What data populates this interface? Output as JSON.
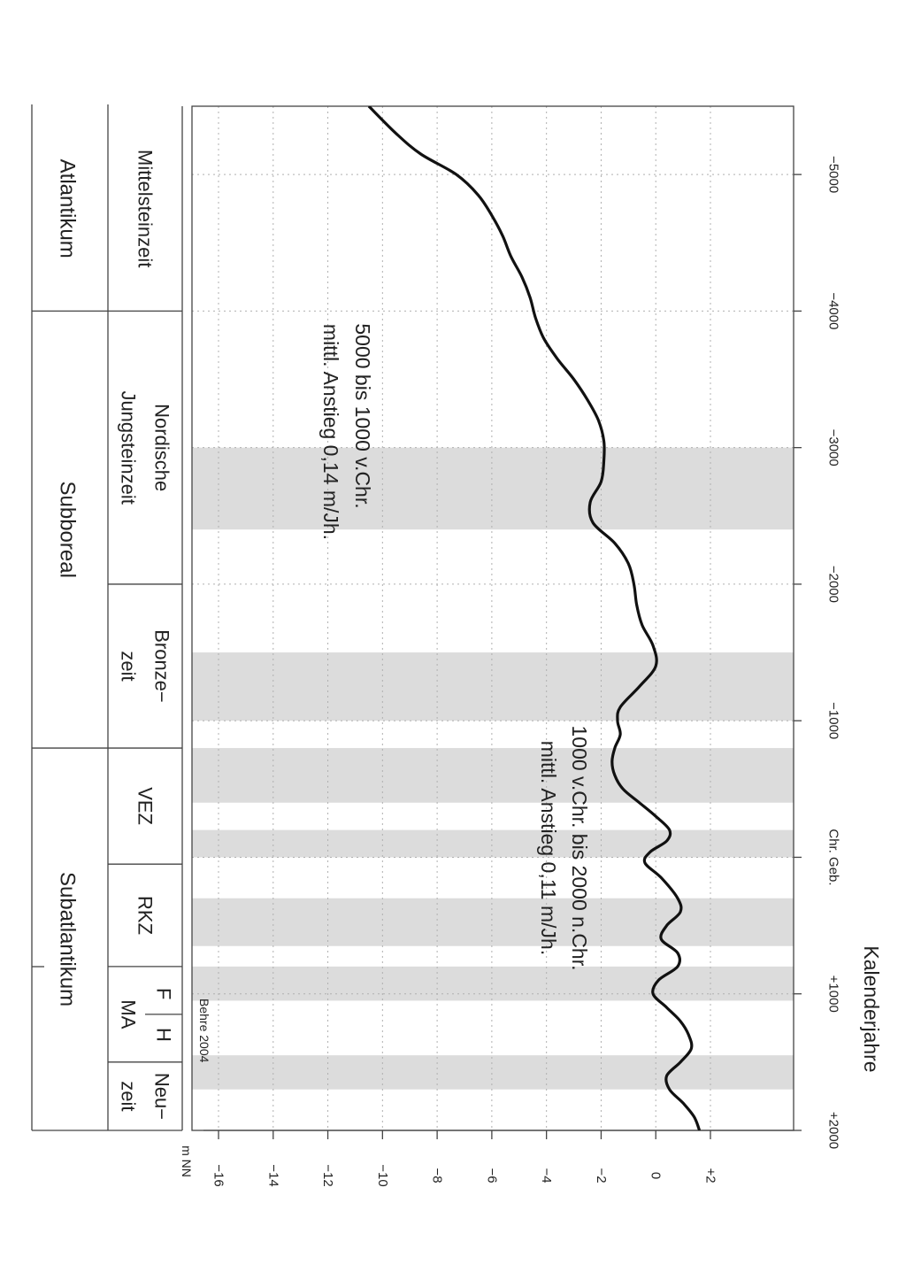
{
  "chart_data": {
    "type": "line",
    "title": "Kalenderjahre",
    "xlabel": "Kalenderjahre",
    "ylabel": "m NN",
    "x_ticks": [
      {
        "value": -5000,
        "label": "−5000"
      },
      {
        "value": -4000,
        "label": "−4000"
      },
      {
        "value": -3000,
        "label": "−3000"
      },
      {
        "value": -2000,
        "label": "−2000"
      },
      {
        "value": -1000,
        "label": "−1000"
      },
      {
        "value": 0,
        "label": "Chr. Geb."
      },
      {
        "value": 1000,
        "label": "+1000"
      },
      {
        "value": 2000,
        "label": "+2000"
      }
    ],
    "y_ticks": [
      {
        "value": 2,
        "label": "+2"
      },
      {
        "value": 0,
        "label": "0"
      },
      {
        "value": -2,
        "label": "−2"
      },
      {
        "value": -4,
        "label": "−4"
      },
      {
        "value": -6,
        "label": "−6"
      },
      {
        "value": -8,
        "label": "−8"
      },
      {
        "value": -10,
        "label": "−10"
      },
      {
        "value": -12,
        "label": "−12"
      },
      {
        "value": -14,
        "label": "−14"
      },
      {
        "value": -16,
        "label": "−16"
      }
    ],
    "xlim": [
      -5500,
      2000
    ],
    "ylim": [
      -17,
      3
    ],
    "grid": true,
    "series": [
      {
        "x": [
          -5500,
          -5300,
          -5150,
          -5000,
          -4850,
          -4700,
          -4550,
          -4400,
          -4250,
          -4100,
          -3950,
          -3800,
          -3650,
          -3500,
          -3350,
          -3200,
          -3050,
          -2900,
          -2750,
          -2600,
          -2450,
          -2300,
          -2150,
          -2000,
          -1850,
          -1700,
          -1550,
          -1400,
          -1250,
          -1100,
          -1000,
          -900,
          -800,
          -700,
          -600,
          -500,
          -400,
          -300,
          -200,
          -120,
          -40,
          40,
          150,
          300,
          400,
          500,
          600,
          700,
          800,
          900,
          1000,
          1100,
          1200,
          1300,
          1400,
          1500,
          1600,
          1700,
          1800,
          1900,
          2000
        ],
        "y": [
          -10.5,
          -9.5,
          -8.6,
          -7.3,
          -6.5,
          -6.0,
          -5.6,
          -5.3,
          -4.9,
          -4.6,
          -4.4,
          -4.1,
          -3.6,
          -3.0,
          -2.5,
          -2.1,
          -1.9,
          -1.9,
          -2.0,
          -2.4,
          -2.3,
          -1.5,
          -1.0,
          -0.8,
          -0.7,
          -0.5,
          -0.1,
          0.0,
          -0.6,
          -1.3,
          -1.4,
          -1.3,
          -1.5,
          -1.6,
          -1.5,
          -1.2,
          -0.6,
          0.0,
          0.5,
          0.4,
          -0.2,
          -0.4,
          0.2,
          0.8,
          0.9,
          0.4,
          0.2,
          0.8,
          0.8,
          0.1,
          -0.1,
          0.4,
          0.9,
          1.2,
          1.3,
          0.9,
          0.4,
          0.5,
          1.0,
          1.4,
          1.6
        ]
      }
    ],
    "shaded_periods": [
      {
        "from": -3000,
        "to": -2400
      },
      {
        "from": -1500,
        "to": -1000
      },
      {
        "from": -800,
        "to": -400
      },
      {
        "from": -200,
        "to": 0
      },
      {
        "from": 300,
        "to": 650
      },
      {
        "from": 800,
        "to": 1050
      },
      {
        "from": 1450,
        "to": 1700
      }
    ],
    "annotations": [
      {
        "lines": [
          "5000 bis 1000 v.Chr.",
          "mittl. Anstieg 0,14 m/Jh."
        ]
      },
      {
        "lines": [
          "1000 v.Chr. bis 2000 n.Chr.",
          "mittl. Anstieg 0,11 m/Jh."
        ]
      },
      {
        "lines": [
          "Behre 2004"
        ]
      }
    ],
    "cultural_periods": [
      {
        "from": -5500,
        "to": -4000,
        "lines": [
          "Mittelsteinzeit"
        ]
      },
      {
        "from": -4000,
        "to": -2000,
        "lines": [
          "Nordische",
          "Jungsteinzeit"
        ]
      },
      {
        "from": -2000,
        "to": -800,
        "lines": [
          "Bronze−",
          "zeit"
        ]
      },
      {
        "from": -800,
        "to": 50,
        "lines": [
          "VEZ"
        ]
      },
      {
        "from": 50,
        "to": 800,
        "lines": [
          "RKZ"
        ]
      },
      {
        "from": 1500,
        "to": 2000,
        "lines": [
          "Neu−",
          "zeit"
        ]
      }
    ],
    "medieval_period": {
      "from": 800,
      "to": 1500,
      "upper": [
        "F",
        "H"
      ],
      "lower": "MA"
    },
    "climate_periods": [
      {
        "from": -5500,
        "to": -4000,
        "label": "Atlantikum"
      },
      {
        "from": -4000,
        "to": -800,
        "label": "Subboreal"
      },
      {
        "from": -800,
        "to": 2000,
        "label": "Subatlantikum"
      }
    ]
  }
}
